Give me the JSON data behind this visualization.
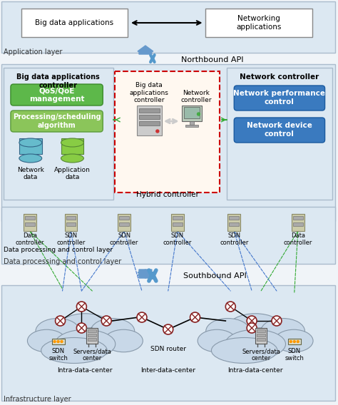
{
  "fig_width": 4.74,
  "fig_height": 5.68,
  "bg_color": "#f0f4f8",
  "layer_bg_light": "#dce8f0",
  "layer_bg_mid": "#ccdde8",
  "green_fill": "#6db33f",
  "blue_fill": "#3a7abf",
  "red_dashed_color": "#cc0000",
  "title": "Application layer",
  "app_layer_label": "Application layer",
  "control_layer_label": "Data processing and control layer",
  "infra_layer_label": "Infrastructure layer",
  "northbound_label": "Northbound API",
  "southbound_label": "Southbound API"
}
